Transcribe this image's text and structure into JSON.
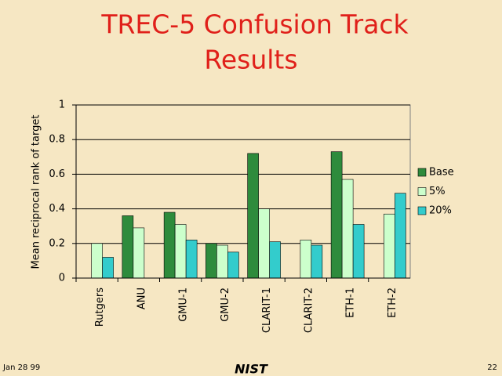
{
  "chart_data": {
    "type": "bar",
    "title": [
      "TREC-5 Confusion Track",
      "Results"
    ],
    "y_label": "Mean reciprocal rank of target",
    "categories": [
      "Rutgers",
      "ANU",
      "GMU-1",
      "GMU-2",
      "CLARIT-1",
      "CLARIT-2",
      "ETH-1",
      "ETH-2"
    ],
    "series": [
      {
        "name": "Base",
        "color": "#2e8b3c",
        "values": [
          null,
          0.36,
          0.38,
          0.2,
          0.72,
          null,
          0.73,
          null
        ]
      },
      {
        "name": "5%",
        "color": "#ccffcc",
        "values": [
          0.2,
          0.29,
          0.31,
          0.19,
          0.4,
          0.22,
          0.57,
          0.37
        ]
      },
      {
        "name": "20%",
        "color": "#33cccc",
        "values": [
          0.12,
          null,
          0.22,
          0.15,
          0.21,
          0.19,
          0.31,
          0.49
        ]
      }
    ],
    "ylim": [
      0,
      1
    ],
    "yticks": [
      0,
      0.2,
      0.4,
      0.6,
      0.8,
      1
    ],
    "grid": true,
    "legend": "right"
  },
  "footer": {
    "date": "Jan 28 99",
    "logo": "NIST",
    "page": "22"
  }
}
